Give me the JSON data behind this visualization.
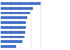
{
  "values": [
    72,
    58,
    53,
    48,
    46,
    45,
    44,
    43,
    39,
    28
  ],
  "bar_color": "#4472c4",
  "background_color": "#ffffff",
  "xlim": [
    0,
    90
  ],
  "bar_height": 0.55,
  "grid_color": "#d9d9d9",
  "n_gridlines": 5
}
